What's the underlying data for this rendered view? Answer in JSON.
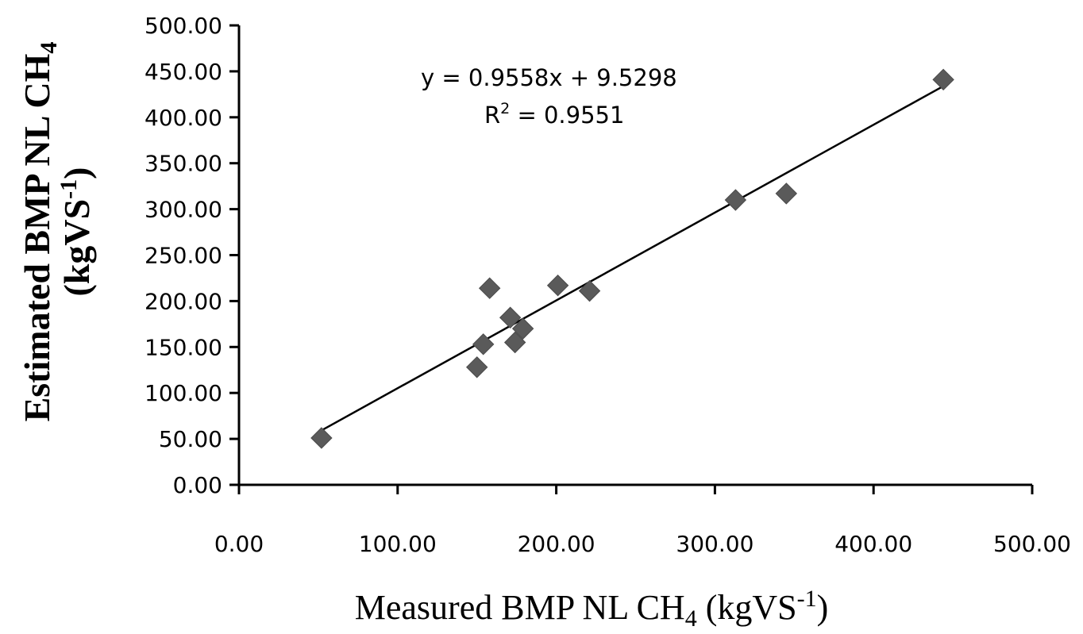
{
  "chart_data": {
    "type": "scatter",
    "title": "",
    "xlabel": {
      "main": "Measured BMP NL CH",
      "sub": "4",
      "unit_open": " (kgVS",
      "sup": "-1",
      "unit_close": ")"
    },
    "ylabel": {
      "line1_main": "Estimated BMP NL CH",
      "line1_sub": "4",
      "line2_open": "(kgVS",
      "line2_sup": "-1",
      "line2_close": ")"
    },
    "xlim": [
      0,
      500
    ],
    "ylim": [
      0,
      500
    ],
    "x_ticks": [
      "0.00",
      "100.00",
      "200.00",
      "300.00",
      "400.00",
      "500.00"
    ],
    "y_ticks": [
      "0.00",
      "50.00",
      "100.00",
      "150.00",
      "200.00",
      "250.00",
      "300.00",
      "350.00",
      "400.00",
      "450.00",
      "500.00"
    ],
    "points": [
      {
        "x": 52,
        "y": 51
      },
      {
        "x": 150,
        "y": 128
      },
      {
        "x": 154,
        "y": 153
      },
      {
        "x": 158,
        "y": 214
      },
      {
        "x": 171,
        "y": 182
      },
      {
        "x": 174,
        "y": 155
      },
      {
        "x": 179,
        "y": 170
      },
      {
        "x": 201,
        "y": 217
      },
      {
        "x": 221,
        "y": 211
      },
      {
        "x": 313,
        "y": 310
      },
      {
        "x": 345,
        "y": 317
      },
      {
        "x": 444,
        "y": 441
      }
    ],
    "trendline": {
      "slope": 0.9558,
      "intercept": 9.5298,
      "x_start": 52,
      "x_end": 444,
      "equation": "y  = 0.9558x + 9.5298",
      "r2_prefix": "R",
      "r2_sup": "2",
      "r2_value": " = 0.9551"
    },
    "marker": {
      "shape": "diamond",
      "color": "#5a5a5a"
    },
    "grid": false,
    "legend": "none"
  }
}
